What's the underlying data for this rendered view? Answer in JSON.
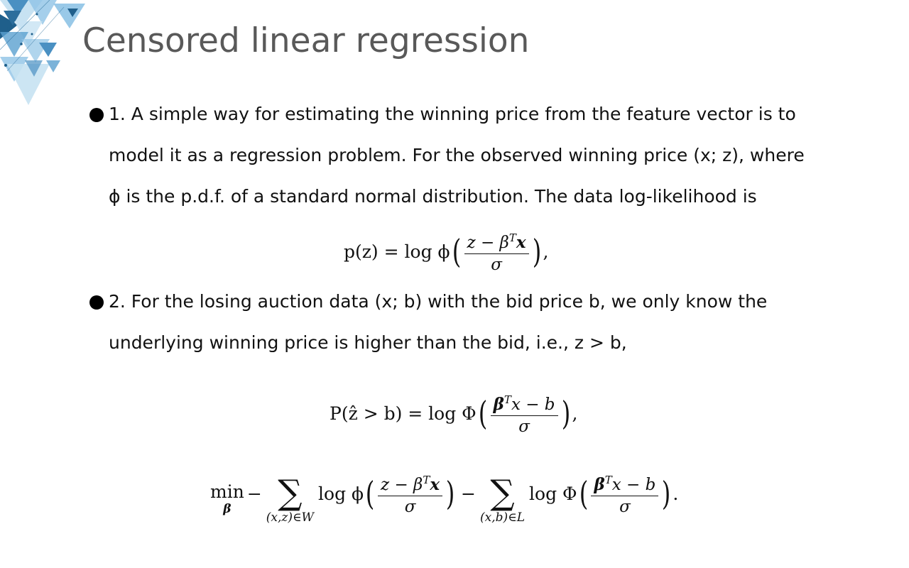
{
  "slide": {
    "title": "Censored linear regression",
    "bullets": [
      {
        "lines": [
          "1. A simple way for estimating the winning price from the feature vector is to",
          "model it as a regression problem. For the observed winning price (x; z), where",
          "ϕ is the p.d.f. of a standard normal distribution. The data log-likelihood is"
        ]
      },
      {
        "lines": [
          "2. For the losing auction data (x; b) with the bid price b, we only know the",
          "underlying winning price is higher than the bid, i.e., z > b,"
        ]
      }
    ]
  },
  "equations": {
    "eq1": {
      "lhs": "p(z) = log ϕ",
      "num": "z − β",
      "num_sup": "T",
      "num_tail": "x",
      "den": "σ",
      "tail": ","
    },
    "eq2": {
      "lhs": "P(ẑ > b) = log Φ",
      "num_head": "β",
      "num_sup": "T",
      "num": "x − b",
      "den": "σ",
      "tail": ","
    },
    "eq3": {
      "min": "min",
      "min_sub": "β",
      "minus1": "−",
      "sum1_sub": "(x,z)∈W",
      "log_phi": "log ϕ",
      "f1_num": "z − β",
      "f1_sup": "T",
      "f1_tail": "x",
      "f1_den": "σ",
      "minus2": "−",
      "sum2_sub": "(x,b)∈L",
      "log_Phi": "log Φ",
      "f2_head": "β",
      "f2_sup": "T",
      "f2_num": "x − b",
      "f2_den": "σ",
      "tail": "."
    }
  },
  "decoration": {
    "colors": [
      "#1f5f8b",
      "#4a90c2",
      "#8ec3e6",
      "#c7e2f2",
      "#5aa0cf"
    ]
  }
}
